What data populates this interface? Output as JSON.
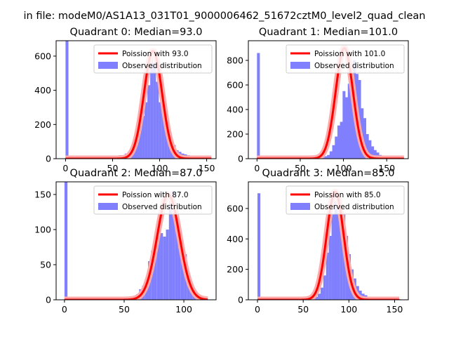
{
  "suptitle": "in file: modeM0/AS1A13_031T01_9000006462_51672cztM0_level2_quad_clean",
  "colors": {
    "observed": "#8080ff",
    "poisson": "#ff0000",
    "poisson_halo": "#ffaaaa",
    "axes": "#000000"
  },
  "chart_data": [
    {
      "type": "bar",
      "title": "Quadrant 0: Median=93.0",
      "legend": {
        "placement": "top-right",
        "entries": [
          "Poission with 93.0",
          "Observed distribution"
        ]
      },
      "xlim": [
        -10,
        160
      ],
      "ylim": [
        0,
        690
      ],
      "xticks": [
        0,
        50,
        100,
        150
      ],
      "yticks": [
        0,
        200,
        400,
        600
      ],
      "bin_width": 3.1,
      "observed": {
        "bins": [
          0,
          3,
          6,
          9,
          12,
          15,
          18,
          21,
          24,
          27,
          30,
          33,
          36,
          39,
          42,
          45,
          48,
          51,
          54,
          57,
          60,
          63,
          66,
          69,
          72,
          75,
          78,
          81,
          84,
          87,
          90,
          93,
          96,
          99,
          102,
          105,
          108,
          111,
          114,
          117,
          120,
          123,
          126,
          129,
          132,
          135,
          138,
          141,
          144,
          147,
          150
        ],
        "counts": [
          690,
          15,
          15,
          5,
          5,
          5,
          5,
          5,
          5,
          5,
          5,
          5,
          5,
          5,
          5,
          5,
          5,
          15,
          15,
          20,
          20,
          30,
          40,
          60,
          90,
          140,
          170,
          250,
          330,
          430,
          620,
          560,
          450,
          330,
          330,
          220,
          160,
          110,
          80,
          50,
          40,
          30,
          25,
          20,
          15,
          10,
          5,
          5,
          5,
          5,
          5
        ]
      },
      "poisson": {
        "mean": 93.0,
        "peak": 630,
        "x_range": [
          0,
          155
        ]
      }
    },
    {
      "type": "bar",
      "title": "Quadrant 1: Median=101.0",
      "legend": {
        "placement": "top-right",
        "entries": [
          "Poission with 101.0",
          "Observed distribution"
        ]
      },
      "xlim": [
        -10,
        175
      ],
      "ylim": [
        0,
        960
      ],
      "xticks": [
        0,
        50,
        100,
        150
      ],
      "yticks": [
        0,
        200,
        400,
        600,
        800
      ],
      "bin_width": 3.3,
      "observed": {
        "bins": [
          0,
          3,
          6,
          9,
          12,
          15,
          18,
          21,
          24,
          27,
          30,
          33,
          36,
          39,
          42,
          45,
          48,
          51,
          54,
          57,
          60,
          63,
          66,
          69,
          72,
          75,
          78,
          81,
          84,
          87,
          90,
          93,
          96,
          99,
          102,
          105,
          108,
          111,
          114,
          117,
          120,
          123,
          126,
          129,
          132,
          135,
          138,
          141,
          144,
          147,
          150,
          153,
          156,
          159,
          162,
          165
        ],
        "counts": [
          860,
          5,
          5,
          5,
          5,
          5,
          5,
          5,
          5,
          5,
          5,
          5,
          5,
          5,
          5,
          5,
          5,
          5,
          5,
          5,
          5,
          5,
          5,
          5,
          5,
          10,
          20,
          30,
          60,
          110,
          180,
          270,
          300,
          550,
          500,
          610,
          680,
          800,
          690,
          640,
          410,
          330,
          200,
          150,
          100,
          70,
          50,
          30,
          20,
          10,
          10,
          10,
          5,
          5,
          5,
          5
        ]
      },
      "poisson": {
        "mean": 101.0,
        "peak": 900,
        "x_range": [
          0,
          170
        ]
      }
    },
    {
      "type": "bar",
      "title": "Quadrant 2: Median=87.0",
      "legend": {
        "placement": "top-right",
        "entries": [
          "Poission with 87.0",
          "Observed distribution"
        ]
      },
      "xlim": [
        -7,
        127
      ],
      "ylim": [
        0,
        168
      ],
      "xticks": [
        0,
        50,
        100
      ],
      "yticks": [
        0,
        50,
        100,
        150
      ],
      "bin_width": 2.5,
      "observed": {
        "bins": [
          0,
          2.5,
          5,
          7.5,
          10,
          12.5,
          15,
          17.5,
          20,
          22.5,
          25,
          27.5,
          30,
          32.5,
          35,
          37.5,
          40,
          42.5,
          45,
          47.5,
          50,
          52.5,
          55,
          57.5,
          60,
          62.5,
          65,
          67.5,
          70,
          72.5,
          75,
          77.5,
          80,
          82.5,
          85,
          87.5,
          90,
          92.5,
          95,
          97.5,
          100,
          102.5,
          105,
          107.5,
          110,
          112.5,
          115,
          117.5
        ],
        "counts": [
          168,
          3,
          2,
          2,
          2,
          2,
          2,
          2,
          2,
          2,
          2,
          2,
          2,
          2,
          2,
          2,
          2,
          2,
          2,
          2,
          2,
          4,
          5,
          3,
          8,
          15,
          20,
          30,
          55,
          70,
          82,
          105,
          95,
          90,
          100,
          145,
          155,
          125,
          90,
          80,
          65,
          30,
          15,
          10,
          5,
          3,
          2,
          2
        ]
      },
      "poisson": {
        "mean": 87.0,
        "peak": 150,
        "x_range": [
          0,
          120
        ]
      }
    },
    {
      "type": "bar",
      "title": "Quadrant 3: Median=85.0",
      "legend": {
        "placement": "top-right",
        "entries": [
          "Poission with 85.0",
          "Observed distribution"
        ]
      },
      "xlim": [
        -10,
        165
      ],
      "ylim": [
        0,
        775
      ],
      "xticks": [
        0,
        50,
        100,
        150
      ],
      "yticks": [
        0,
        200,
        400,
        600
      ],
      "bin_width": 3.1,
      "observed": {
        "bins": [
          0,
          3,
          6,
          9,
          12,
          15,
          18,
          21,
          24,
          27,
          30,
          33,
          36,
          39,
          42,
          45,
          48,
          51,
          54,
          57,
          60,
          63,
          66,
          69,
          72,
          75,
          78,
          81,
          84,
          87,
          90,
          93,
          96,
          99,
          102,
          105,
          108,
          111,
          114,
          117,
          120,
          123,
          126,
          129,
          132,
          135,
          138,
          141,
          144,
          147,
          150,
          153
        ],
        "counts": [
          700,
          5,
          5,
          5,
          5,
          5,
          5,
          5,
          5,
          5,
          5,
          5,
          5,
          5,
          5,
          5,
          5,
          5,
          5,
          5,
          15,
          20,
          40,
          80,
          160,
          310,
          420,
          560,
          650,
          700,
          540,
          560,
          420,
          300,
          200,
          140,
          90,
          60,
          40,
          30,
          20,
          15,
          10,
          10,
          10,
          5,
          5,
          5,
          5,
          5,
          5,
          5
        ]
      },
      "poisson": {
        "mean": 85.0,
        "peak": 710,
        "x_range": [
          0,
          155
        ]
      }
    }
  ]
}
